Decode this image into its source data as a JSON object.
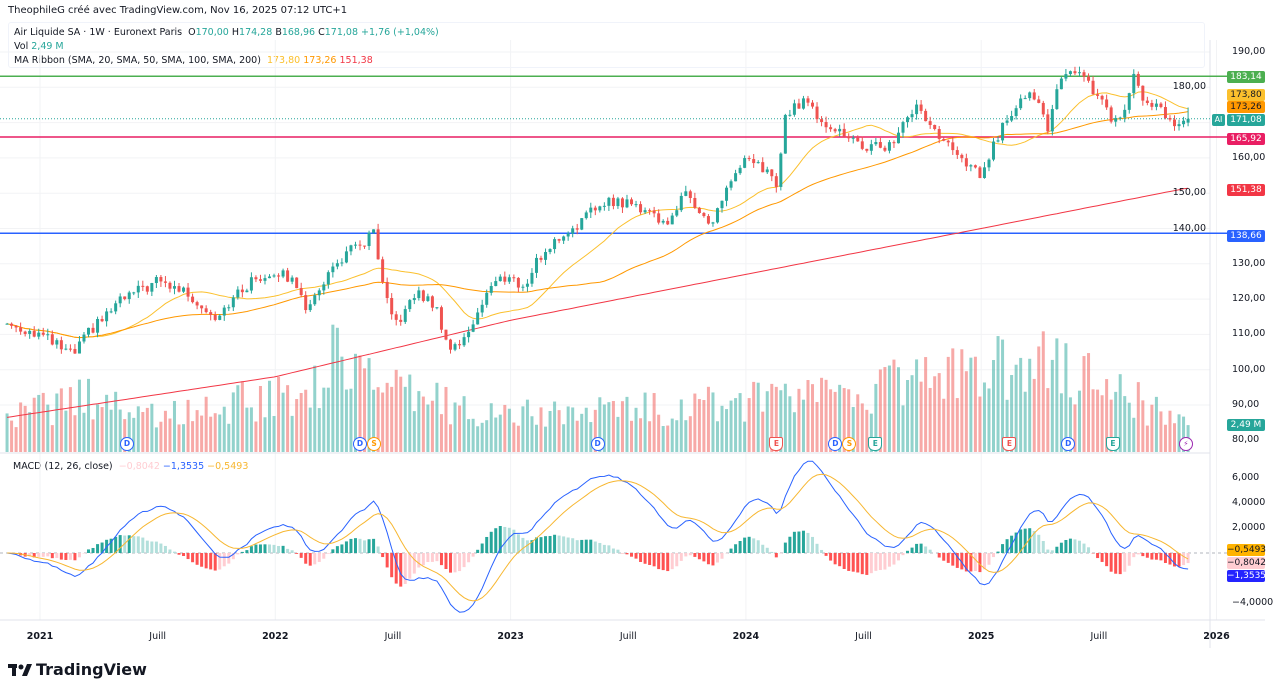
{
  "credit": "TheophileG créé avec TradingView.com, Nov 16, 2025 07:12 UTC+1",
  "legend": {
    "symbol": "Air Liquide SA · 1W · Euronext Paris",
    "o_label": "O",
    "o": "170,00",
    "h_label": "H",
    "h": "174,28",
    "b_label": "B",
    "b": "168,96",
    "c_label": "C",
    "c": "171,08",
    "change": "+1,76 (+1,04%)",
    "vol_label": "Vol",
    "vol": "2,49 M",
    "ma_label": "MA Ribbon (SMA, 20, SMA, 50, SMA, 100, SMA, 200)",
    "ma_values": [
      "173,80",
      "173,26",
      "151,38"
    ],
    "macd_label": "MACD (12, 26, close)",
    "macd_values": [
      "−0,8042",
      "−1,3535",
      "−0,5493"
    ]
  },
  "logo": "TradingView",
  "colors": {
    "up": "#26a69a",
    "down": "#ef5350",
    "ma20": "#fbc02d",
    "ma50": "#ff9800",
    "ma200": "#f23645",
    "macd": "#2962ff",
    "signal": "#f7b731"
  },
  "chart_data": {
    "type": "candlestick",
    "interval": "1W",
    "price_axis": {
      "ticks": [
        "190,00",
        "180,00",
        "160,00",
        "150,00",
        "140,00",
        "130,00",
        "120,00",
        "110,00",
        "100,00",
        "90,00",
        "80,00"
      ],
      "range": [
        80,
        192
      ]
    },
    "time_axis": {
      "ticks": [
        "2021",
        "Juill",
        "2022",
        "Juill",
        "2023",
        "Juill",
        "2024",
        "Juill",
        "2025",
        "Juill",
        "2026"
      ]
    },
    "close_keypoints": [
      [
        2020.86,
        113
      ],
      [
        2021.0,
        110
      ],
      [
        2021.14,
        104
      ],
      [
        2021.2,
        110
      ],
      [
        2021.35,
        120
      ],
      [
        2021.5,
        125
      ],
      [
        2021.62,
        122
      ],
      [
        2021.74,
        115
      ],
      [
        2021.9,
        125
      ],
      [
        2022.0,
        128
      ],
      [
        2022.1,
        124
      ],
      [
        2022.14,
        116
      ],
      [
        2022.2,
        125
      ],
      [
        2022.3,
        133
      ],
      [
        2022.38,
        136
      ],
      [
        2022.42,
        139
      ],
      [
        2022.45,
        125
      ],
      [
        2022.5,
        113
      ],
      [
        2022.55,
        116
      ],
      [
        2022.6,
        122
      ],
      [
        2022.68,
        118
      ],
      [
        2022.74,
        106
      ],
      [
        2022.8,
        108
      ],
      [
        2022.87,
        118
      ],
      [
        2022.92,
        124
      ],
      [
        2023.0,
        127
      ],
      [
        2023.05,
        122
      ],
      [
        2023.1,
        130
      ],
      [
        2023.2,
        137
      ],
      [
        2023.3,
        142
      ],
      [
        2023.4,
        148
      ],
      [
        2023.5,
        147
      ],
      [
        2023.6,
        145
      ],
      [
        2023.65,
        141
      ],
      [
        2023.75,
        150
      ],
      [
        2023.8,
        146
      ],
      [
        2023.85,
        140
      ],
      [
        2023.92,
        152
      ],
      [
        2024.0,
        159
      ],
      [
        2024.1,
        156
      ],
      [
        2024.13,
        152
      ],
      [
        2024.17,
        172
      ],
      [
        2024.25,
        177
      ],
      [
        2024.3,
        172
      ],
      [
        2024.45,
        165
      ],
      [
        2024.5,
        163
      ],
      [
        2024.6,
        163
      ],
      [
        2024.65,
        167
      ],
      [
        2024.72,
        175
      ],
      [
        2024.8,
        168
      ],
      [
        2024.9,
        160
      ],
      [
        2025.0,
        155
      ],
      [
        2025.05,
        163
      ],
      [
        2025.1,
        170
      ],
      [
        2025.17,
        178
      ],
      [
        2025.22,
        178
      ],
      [
        2025.25,
        176
      ],
      [
        2025.28,
        166
      ],
      [
        2025.31,
        176
      ],
      [
        2025.36,
        185
      ],
      [
        2025.42,
        184
      ],
      [
        2025.47,
        180
      ],
      [
        2025.55,
        171
      ],
      [
        2025.6,
        170
      ],
      [
        2025.65,
        183
      ],
      [
        2025.7,
        175
      ],
      [
        2025.76,
        174
      ],
      [
        2025.82,
        168
      ],
      [
        2025.87,
        171.08
      ]
    ],
    "last_bar": {
      "open": 170.0,
      "high": 174.28,
      "low": 168.96,
      "close": 171.08,
      "change": 1.76,
      "change_pct": 1.04,
      "volume_m": 2.49
    },
    "volume_keypoints_m": [
      [
        2020.86,
        3
      ],
      [
        2021.2,
        5.5
      ],
      [
        2021.5,
        3.5
      ],
      [
        2022.15,
        6
      ],
      [
        2022.3,
        10.5
      ],
      [
        2022.45,
        6
      ],
      [
        2023.0,
        3.5
      ],
      [
        2024.17,
        5
      ],
      [
        2025.3,
        9
      ],
      [
        2025.87,
        2.5
      ]
    ],
    "ma200_keypoints": [
      [
        2020.86,
        86.5
      ],
      [
        2022.0,
        98
      ],
      [
        2023.0,
        114
      ],
      [
        2024.0,
        127
      ],
      [
        2025.0,
        140
      ],
      [
        2025.87,
        151.38
      ]
    ],
    "horizontal_levels": [
      {
        "price": 183.14,
        "label": "183,14",
        "color": "#4caf50"
      },
      {
        "price": 165.92,
        "label": "165,92",
        "color": "#e91e63"
      },
      {
        "price": 138.66,
        "label": "138,66",
        "color": "#2962ff"
      }
    ],
    "price_labels": {
      "last": "171,08",
      "ai": "AI",
      "ma20": "173,80",
      "ma50": "173,26",
      "ma200": "151,38",
      "volume": "2,49 M"
    },
    "macd_axis": {
      "ticks": [
        "6,000",
        "4,0000",
        "2,0000",
        "−4,0000"
      ]
    },
    "macd_labels": {
      "signal": "−0,5493",
      "hist": "−0,8042",
      "macd": "−1,3535"
    },
    "events": [
      {
        "t": 2021.37,
        "type": "D"
      },
      {
        "t": 2022.36,
        "type": "D"
      },
      {
        "t": 2022.42,
        "type": "S"
      },
      {
        "t": 2023.37,
        "type": "D"
      },
      {
        "t": 2024.13,
        "type": "E"
      },
      {
        "t": 2024.38,
        "type": "D"
      },
      {
        "t": 2024.44,
        "type": "S"
      },
      {
        "t": 2024.55,
        "type": "E"
      },
      {
        "t": 2025.12,
        "type": "E"
      },
      {
        "t": 2025.37,
        "type": "D"
      },
      {
        "t": 2025.56,
        "type": "E"
      },
      {
        "t": 2025.87,
        "type": "⚡"
      }
    ]
  }
}
